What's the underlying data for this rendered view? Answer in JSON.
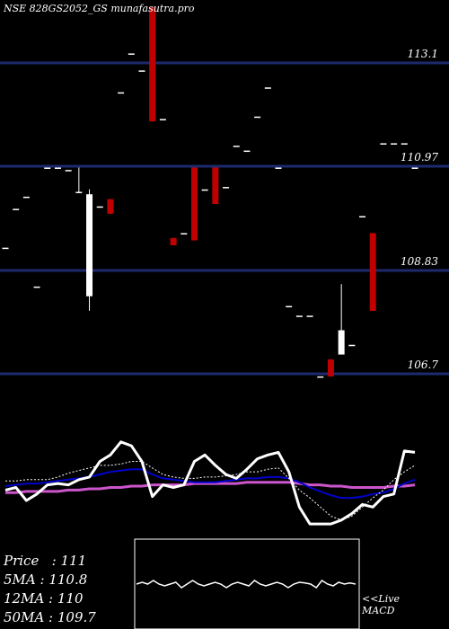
{
  "header": {
    "title": "NSE 828GS2052_GS munafasutra.pro"
  },
  "colors": {
    "background": "#000000",
    "gridline": "#1e2a6e",
    "up_candle": "#ffffff",
    "down_candle": "#c00000",
    "ma_blue": "#0000cc",
    "ma_violet": "#cc55cc",
    "macd_black_frame": "#000000"
  },
  "stats": {
    "price_label": "Price",
    "price_value": "111",
    "ma5_label": "5MA",
    "ma5_value": "110.8",
    "ma12_label": "12MA",
    "ma12_value": "110",
    "ma50_label": "50MA",
    "ma50_value": "109.7"
  },
  "macd": {
    "label_line1": "<<Live",
    "label_line2": "MACD"
  },
  "chart_data": {
    "type": "candlestick",
    "yticks": [
      113.1,
      110.97,
      108.83,
      106.7
    ],
    "ylim": [
      106.0,
      114.4
    ],
    "candles": [
      {
        "o": 109.3,
        "h": 109.3,
        "l": 109.3,
        "c": 109.3
      },
      {
        "o": 110.1,
        "h": 110.1,
        "l": 110.1,
        "c": 110.1
      },
      {
        "o": 110.35,
        "h": 110.35,
        "l": 110.35,
        "c": 110.35
      },
      {
        "o": 108.5,
        "h": 108.5,
        "l": 108.5,
        "c": 108.5
      },
      {
        "o": 110.95,
        "h": 110.95,
        "l": 110.95,
        "c": 110.95
      },
      {
        "o": 110.95,
        "h": 110.95,
        "l": 110.95,
        "c": 110.95
      },
      {
        "o": 110.9,
        "h": 110.9,
        "l": 110.9,
        "c": 110.9
      },
      {
        "o": 110.45,
        "h": 110.95,
        "l": 110.45,
        "c": 110.45
      },
      {
        "o": 108.3,
        "h": 110.5,
        "l": 108.0,
        "c": 110.4
      },
      {
        "o": 110.15,
        "h": 110.15,
        "l": 110.15,
        "c": 110.15
      },
      {
        "o": 110.3,
        "h": 110.3,
        "l": 110.0,
        "c": 110.0
      },
      {
        "o": 112.5,
        "h": 112.5,
        "l": 112.5,
        "c": 112.5
      },
      {
        "o": 113.3,
        "h": 113.3,
        "l": 113.3,
        "c": 113.3
      },
      {
        "o": 112.95,
        "h": 112.95,
        "l": 112.95,
        "c": 112.95
      },
      {
        "o": 114.25,
        "h": 114.25,
        "l": 111.9,
        "c": 111.9
      },
      {
        "o": 111.95,
        "h": 111.95,
        "l": 111.95,
        "c": 111.95
      },
      {
        "o": 109.5,
        "h": 109.5,
        "l": 109.35,
        "c": 109.35
      },
      {
        "o": 109.6,
        "h": 109.6,
        "l": 109.6,
        "c": 109.6
      },
      {
        "o": 110.95,
        "h": 110.95,
        "l": 109.45,
        "c": 109.45
      },
      {
        "o": 110.5,
        "h": 110.5,
        "l": 110.5,
        "c": 110.5
      },
      {
        "o": 110.95,
        "h": 110.95,
        "l": 110.2,
        "c": 110.2
      },
      {
        "o": 110.55,
        "h": 110.55,
        "l": 110.55,
        "c": 110.55
      },
      {
        "o": 111.4,
        "h": 111.4,
        "l": 111.4,
        "c": 111.4
      },
      {
        "o": 111.3,
        "h": 111.3,
        "l": 111.3,
        "c": 111.3
      },
      {
        "o": 112.0,
        "h": 112.0,
        "l": 112.0,
        "c": 112.0
      },
      {
        "o": 112.6,
        "h": 112.6,
        "l": 112.6,
        "c": 112.6
      },
      {
        "o": 110.95,
        "h": 110.95,
        "l": 110.95,
        "c": 110.95
      },
      {
        "o": 108.1,
        "h": 108.1,
        "l": 108.1,
        "c": 108.1
      },
      {
        "o": 107.9,
        "h": 107.9,
        "l": 107.9,
        "c": 107.9
      },
      {
        "o": 107.9,
        "h": 107.9,
        "l": 107.9,
        "c": 107.9
      },
      {
        "o": 106.65,
        "h": 106.65,
        "l": 106.65,
        "c": 106.65
      },
      {
        "o": 107.0,
        "h": 107.0,
        "l": 106.65,
        "c": 106.65
      },
      {
        "o": 107.1,
        "h": 108.55,
        "l": 107.1,
        "c": 107.6
      },
      {
        "o": 107.3,
        "h": 107.3,
        "l": 107.3,
        "c": 107.3
      },
      {
        "o": 109.95,
        "h": 109.95,
        "l": 109.95,
        "c": 109.95
      },
      {
        "o": 109.6,
        "h": 109.6,
        "l": 108.0,
        "c": 108.0
      },
      {
        "o": 111.45,
        "h": 111.45,
        "l": 111.45,
        "c": 111.45
      },
      {
        "o": 111.45,
        "h": 111.45,
        "l": 111.45,
        "c": 111.45
      },
      {
        "o": 111.45,
        "h": 111.45,
        "l": 111.45,
        "c": 111.45
      },
      {
        "o": 110.95,
        "h": 110.95,
        "l": 110.95,
        "c": 110.95
      }
    ],
    "indicator": {
      "price_line": [
        52,
        50,
        60,
        55,
        48,
        47,
        48,
        44,
        42,
        30,
        25,
        15,
        18,
        30,
        57,
        48,
        50,
        48,
        30,
        25,
        33,
        40,
        43,
        36,
        28,
        25,
        23,
        38,
        65,
        78,
        78,
        78,
        75,
        70,
        63,
        65,
        57,
        55,
        22,
        23
      ],
      "dotted_line": [
        45,
        45,
        44,
        44,
        44,
        42,
        39,
        37,
        35,
        33,
        33,
        32,
        30,
        30,
        35,
        40,
        42,
        43,
        43,
        42,
        42,
        41,
        40,
        38,
        38,
        36,
        35,
        43,
        52,
        58,
        65,
        72,
        75,
        72,
        65,
        58,
        52,
        44,
        38,
        33
      ],
      "blue_line": [
        49,
        48,
        47,
        47,
        46,
        45,
        44,
        43,
        42,
        40,
        38,
        37,
        36,
        36,
        40,
        43,
        44,
        45,
        46,
        46,
        46,
        45,
        44,
        43,
        43,
        42,
        42,
        43,
        46,
        50,
        53,
        56,
        58,
        58,
        57,
        55,
        54,
        51,
        47,
        44
      ],
      "violet_line": [
        54,
        54,
        53,
        53,
        53,
        53,
        52,
        52,
        51,
        51,
        50,
        50,
        49,
        49,
        48,
        48,
        48,
        48,
        47,
        47,
        47,
        47,
        47,
        46,
        46,
        46,
        46,
        46,
        47,
        48,
        48,
        49,
        49,
        50,
        50,
        50,
        50,
        49,
        49,
        48
      ]
    },
    "macd_line": [
      0,
      0.5,
      0,
      1,
      0,
      -0.5,
      0,
      0.5,
      -1,
      0,
      1,
      0,
      -0.5,
      0,
      0.5,
      0,
      -1,
      0,
      0.5,
      0,
      -0.5,
      1,
      0,
      -0.5,
      0,
      0.5,
      0,
      -1,
      0,
      0.5,
      0.3,
      0,
      -1,
      1,
      0,
      -0.5,
      0.5,
      0,
      0.3,
      0
    ]
  }
}
